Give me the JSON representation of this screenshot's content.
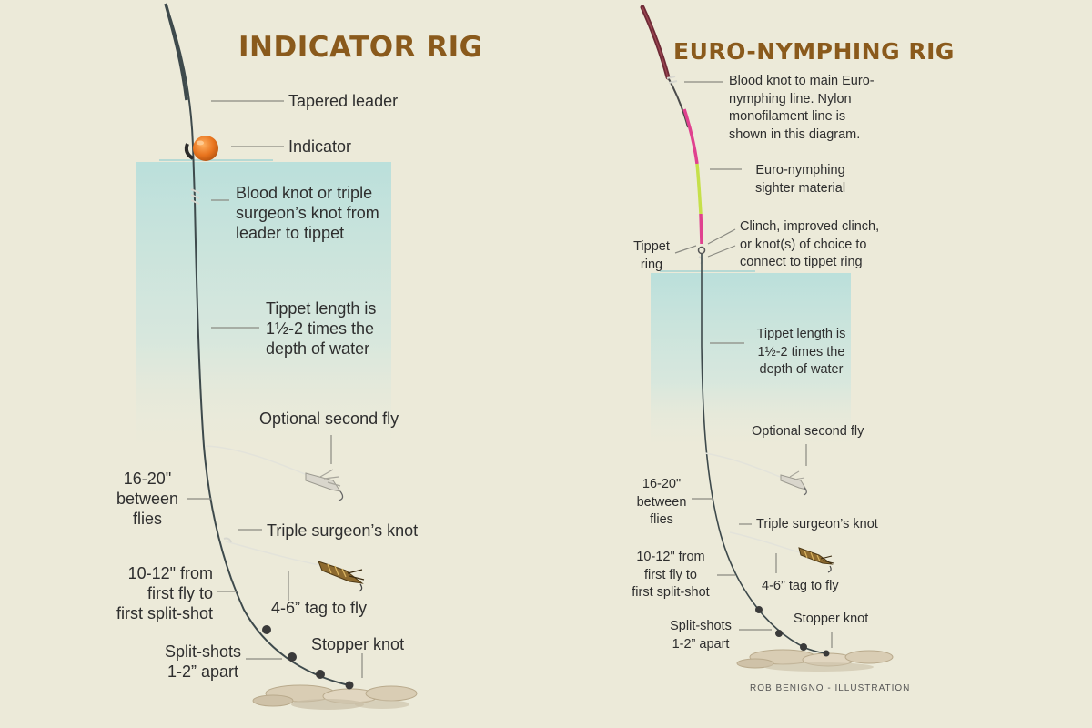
{
  "indicator_rig": {
    "title": "INDICATOR RIG",
    "labels": {
      "tapered_leader": "Tapered leader",
      "indicator": "Indicator",
      "blood_knot": [
        "Blood knot or triple",
        "surgeon’s knot from",
        "leader to tippet"
      ],
      "tippet_length": [
        "Tippet length is",
        "1½-2 times the",
        "depth of water"
      ],
      "optional_second_fly": "Optional second fly",
      "between_flies": [
        "16-20\"",
        "between",
        "flies"
      ],
      "triple_surgeons_knot": "Triple surgeon’s knot",
      "from_first_fly": [
        "10-12\" from",
        "first fly to",
        "first split-shot"
      ],
      "tag_to_fly": "4-6” tag to fly",
      "split_shots": [
        "Split-shots",
        "1-2” apart"
      ],
      "stopper_knot": "Stopper knot"
    }
  },
  "euro_rig": {
    "title": "EURO-NYMPHING RIG",
    "labels": {
      "blood_knot_main": [
        "Blood knot to main Euro-",
        "nymphing line. Nylon",
        "monofilament line is",
        "shown in this diagram."
      ],
      "sighter": [
        "Euro-nymphing",
        "sighter material"
      ],
      "tippet_ring": [
        "Tippet",
        "ring"
      ],
      "clinch": [
        "Clinch, improved clinch,",
        "or knot(s) of choice to",
        "connect to tippet ring"
      ],
      "tippet_length": [
        "Tippet length is",
        "1½-2 times the",
        "depth of water"
      ],
      "optional_second_fly": "Optional second fly",
      "between_flies": [
        "16-20\"",
        "between",
        "flies"
      ],
      "triple_surgeons_knot": "Triple surgeon’s knot",
      "from_first_fly": [
        "10-12\" from",
        "first fly to",
        "first split-shot"
      ],
      "tag_to_fly": "4-6” tag to fly",
      "split_shots": [
        "Split-shots",
        "1-2” apart"
      ],
      "stopper_knot": "Stopper knot"
    }
  },
  "credit": "ROB BENIGNO - ILLUSTRATION",
  "colors": {
    "background": "#ecead9",
    "title": "#8a5a1c",
    "water": "#bfe0dc",
    "indicator": "#e8741e",
    "sighter_pink": "#e0418f",
    "sighter_green": "#c6e04a",
    "rod_butt": "#6e2a36"
  }
}
